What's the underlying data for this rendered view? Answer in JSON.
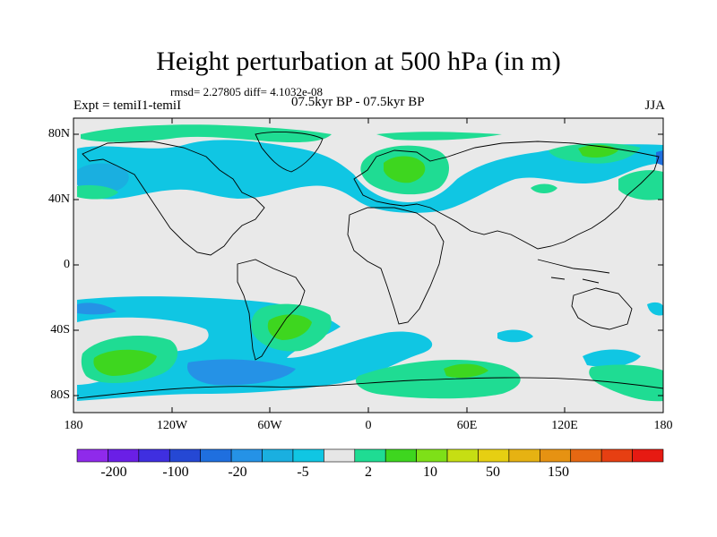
{
  "title": "Height perturbation at 500 hPa (in m)",
  "stats_line": "rmsd= 2.27805 diff= 4.1032e-08",
  "expt_label": "Expt = temiI1-temiI",
  "period_label": "07.5kyr BP - 07.5kyr BP",
  "season_label": "JJA",
  "map": {
    "lat_ticks": [
      "80N",
      "40N",
      "0",
      "40S",
      "80S"
    ],
    "lon_ticks": [
      "180",
      "120W",
      "60W",
      "0",
      "60E",
      "120E",
      "180"
    ],
    "background_color": "#e9e9e9",
    "coast_color": "#000000"
  },
  "colorbar": {
    "colors": [
      "#8f2aeb",
      "#6a1fe6",
      "#3f2fe0",
      "#2548d4",
      "#1f6fdf",
      "#2592e6",
      "#1aafe0",
      "#10c6e3",
      "#e6e6e6",
      "#1fdc93",
      "#3ed61f",
      "#7ee018",
      "#c6de13",
      "#e6cf12",
      "#e6b212",
      "#e69212",
      "#e66812",
      "#e63f12",
      "#e61a12"
    ],
    "labels": [
      "-200",
      "-100",
      "-20",
      "-5",
      "2",
      "10",
      "50",
      "150"
    ]
  }
}
